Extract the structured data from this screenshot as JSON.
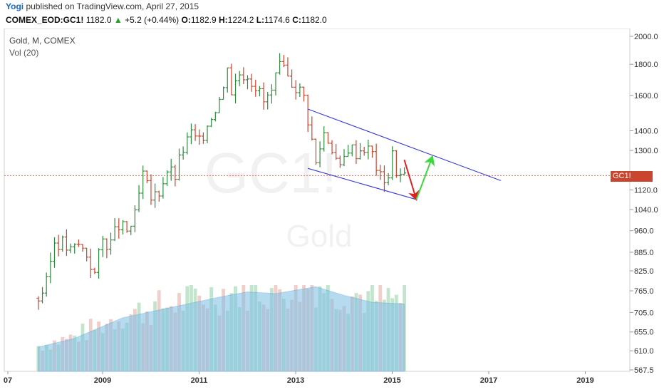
{
  "header": {
    "user": "Yogi",
    "published": "published on TradingView.com, April 27, 2015"
  },
  "ticker": {
    "symbol": "COMEX_EOD:GC1!",
    "last": "1182.0",
    "change": "+5.2 (+0.44%)",
    "open_label": "O:",
    "open": "1182.9",
    "high_label": "H:",
    "high": "1224.2",
    "low_label": "L:",
    "low": "1174.6",
    "close_label": "C:",
    "close": "1182.0"
  },
  "legend": {
    "title": "Gold, M, COMEX",
    "volume": "Vol (20)"
  },
  "watermark": {
    "symbol": "GC1!",
    "name": "Gold"
  },
  "price_tag": {
    "symbol": "GC1!",
    "value": "1182.0"
  },
  "colors": {
    "up": "#2e8b3e",
    "down": "#d0432c",
    "channel": "#3a3ad8",
    "arrow_down": "#e02020",
    "arrow_up": "#3bd93b",
    "volume_up": "#b9dfc4",
    "volume_down": "#f0c4c0",
    "volume_ma": "#7bbfe6"
  },
  "chart_data": {
    "type": "candlestick",
    "timeframe": "monthly",
    "y_scale": "log",
    "y_ticks": [
      567.5,
      610.0,
      655.0,
      705.0,
      765.0,
      825.0,
      885.0,
      960.0,
      1040.0,
      1120.0,
      1300.0,
      1400.0,
      1600.0,
      1800.0,
      2000.0
    ],
    "x_ticks": [
      "07",
      "2009",
      "2011",
      "2013",
      "2015",
      "2017",
      "2019"
    ],
    "last_price": 1182.0,
    "monthly_close": [
      {
        "date": "2007-09",
        "close": 743
      },
      {
        "date": "2007-11",
        "close": 783
      },
      {
        "date": "2008-01",
        "close": 924
      },
      {
        "date": "2008-03",
        "close": 918
      },
      {
        "date": "2008-05",
        "close": 887
      },
      {
        "date": "2008-07",
        "close": 912
      },
      {
        "date": "2008-09",
        "close": 880
      },
      {
        "date": "2008-11",
        "close": 815
      },
      {
        "date": "2009-01",
        "close": 927
      },
      {
        "date": "2009-03",
        "close": 916
      },
      {
        "date": "2009-05",
        "close": 980
      },
      {
        "date": "2009-07",
        "close": 955
      },
      {
        "date": "2009-09",
        "close": 1007
      },
      {
        "date": "2009-11",
        "close": 1182
      },
      {
        "date": "2010-01",
        "close": 1081
      },
      {
        "date": "2010-03",
        "close": 1115
      },
      {
        "date": "2010-05",
        "close": 1212
      },
      {
        "date": "2010-07",
        "close": 1181
      },
      {
        "date": "2010-09",
        "close": 1307
      },
      {
        "date": "2010-11",
        "close": 1386
      },
      {
        "date": "2011-01",
        "close": 1332
      },
      {
        "date": "2011-03",
        "close": 1439
      },
      {
        "date": "2011-05",
        "close": 1536
      },
      {
        "date": "2011-07",
        "close": 1628
      },
      {
        "date": "2011-08",
        "close": 1828
      },
      {
        "date": "2011-09",
        "close": 1624
      },
      {
        "date": "2011-11",
        "close": 1746
      },
      {
        "date": "2012-01",
        "close": 1737
      },
      {
        "date": "2012-03",
        "close": 1668
      },
      {
        "date": "2012-05",
        "close": 1560
      },
      {
        "date": "2012-07",
        "close": 1614
      },
      {
        "date": "2012-09",
        "close": 1776
      },
      {
        "date": "2012-11",
        "close": 1712
      },
      {
        "date": "2013-01",
        "close": 1663
      },
      {
        "date": "2013-03",
        "close": 1596
      },
      {
        "date": "2013-04",
        "close": 1472
      },
      {
        "date": "2013-06",
        "close": 1234
      },
      {
        "date": "2013-08",
        "close": 1396
      },
      {
        "date": "2013-10",
        "close": 1323
      },
      {
        "date": "2013-12",
        "close": 1202
      },
      {
        "date": "2014-02",
        "close": 1321
      },
      {
        "date": "2014-04",
        "close": 1295
      },
      {
        "date": "2014-06",
        "close": 1321
      },
      {
        "date": "2014-08",
        "close": 1287
      },
      {
        "date": "2014-10",
        "close": 1171
      },
      {
        "date": "2014-12",
        "close": 1184
      },
      {
        "date": "2015-01",
        "close": 1278
      },
      {
        "date": "2015-02",
        "close": 1213
      },
      {
        "date": "2015-03",
        "close": 1183
      },
      {
        "date": "2015-04",
        "close": 1182
      }
    ],
    "volume_ma": [
      {
        "date": "2007-09",
        "value": 0.28
      },
      {
        "date": "2008-06",
        "value": 0.38
      },
      {
        "date": "2009-06",
        "value": 0.62
      },
      {
        "date": "2010-06",
        "value": 0.74
      },
      {
        "date": "2011-06",
        "value": 0.86
      },
      {
        "date": "2012-01",
        "value": 0.92
      },
      {
        "date": "2012-08",
        "value": 0.9
      },
      {
        "date": "2013-06",
        "value": 0.98
      },
      {
        "date": "2014-01",
        "value": 0.88
      },
      {
        "date": "2014-08",
        "value": 0.8
      },
      {
        "date": "2015-04",
        "value": 0.78
      }
    ],
    "channel": {
      "upper": [
        {
          "date": "2013-04",
          "price": 1520
        },
        {
          "date": "2017-04",
          "price": 1160
        }
      ],
      "lower": [
        {
          "date": "2013-04",
          "price": 1215
        },
        {
          "date": "2015-07",
          "price": 1080
        }
      ]
    },
    "arrows": [
      {
        "direction": "down",
        "from": {
          "date": "2015-04",
          "price": 1255
        },
        "to": {
          "date": "2015-07",
          "price": 1080
        }
      },
      {
        "direction": "up",
        "from": {
          "date": "2015-07",
          "price": 1080
        },
        "to": {
          "date": "2015-11",
          "price": 1270
        }
      }
    ]
  }
}
